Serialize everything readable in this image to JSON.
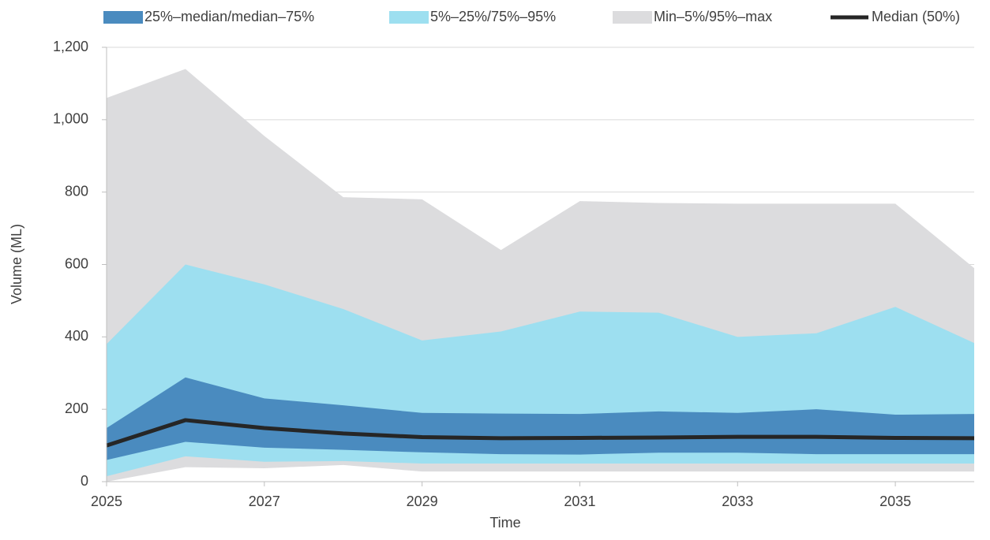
{
  "chart_data": {
    "type": "area",
    "x_label": "Time",
    "y_label": "Volume (ML)",
    "x": [
      2025,
      2026,
      2027,
      2028,
      2029,
      2030,
      2031,
      2032,
      2033,
      2034,
      2035,
      2036
    ],
    "xlim": [
      2025,
      2036
    ],
    "xticks": [
      2025,
      2027,
      2029,
      2031,
      2033,
      2035
    ],
    "ylim": [
      0,
      1200
    ],
    "yticks": [
      0,
      200,
      400,
      600,
      800,
      {
        "value": 1000,
        "label": "1,000"
      },
      {
        "value": 1200,
        "label": "1,200"
      }
    ],
    "grid": true,
    "legend": "top",
    "bands": [
      {
        "name": "Min–5%/95%–max",
        "color": "#dcdcde",
        "lower": [
          0,
          40,
          37,
          46,
          28,
          28,
          28,
          28,
          28,
          28,
          28,
          28
        ],
        "upper": [
          1060,
          1140,
          955,
          786,
          780,
          640,
          775,
          770,
          768,
          768,
          768,
          590
        ]
      },
      {
        "name": "5%–25%/75%–95%",
        "color": "#9ddff0",
        "lower": [
          15,
          70,
          55,
          57,
          50,
          50,
          50,
          50,
          50,
          50,
          50,
          50
        ],
        "upper": [
          380,
          600,
          545,
          477,
          390,
          415,
          470,
          467,
          400,
          410,
          483,
          383
        ]
      },
      {
        "name": "25%–median/median–75%",
        "color": "#4a8bbf",
        "lower": [
          60,
          110,
          94,
          88,
          81,
          76,
          75,
          80,
          80,
          76,
          76,
          76
        ],
        "upper": [
          148,
          288,
          230,
          211,
          190,
          188,
          187,
          194,
          190,
          200,
          185,
          187
        ]
      }
    ],
    "series": [
      {
        "name": "Median (50%)",
        "color": "#262626",
        "values": [
          100,
          170,
          148,
          133,
          123,
          120,
          121,
          122,
          124,
          124,
          121,
          120
        ]
      }
    ]
  }
}
